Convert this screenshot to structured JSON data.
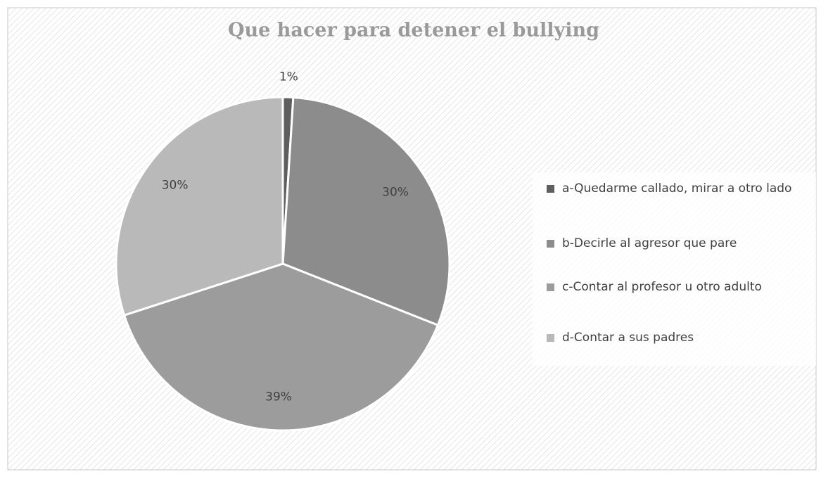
{
  "chart_data": {
    "type": "pie",
    "title": "Que hacer para detener el bullying",
    "categories": [
      "a-Quedarme callado, mirar a otro lado",
      "b-Decirle al agresor que pare",
      "c-Contar al profesor u otro adulto",
      "d-Contar a sus padres"
    ],
    "values": [
      1,
      30,
      39,
      30
    ],
    "value_labels": [
      "1%",
      "30%",
      "39%",
      "30%"
    ],
    "colors": [
      "#5e5e5e",
      "#8c8c8c",
      "#9c9c9c",
      "#b9b9b9"
    ],
    "legend": "right"
  }
}
